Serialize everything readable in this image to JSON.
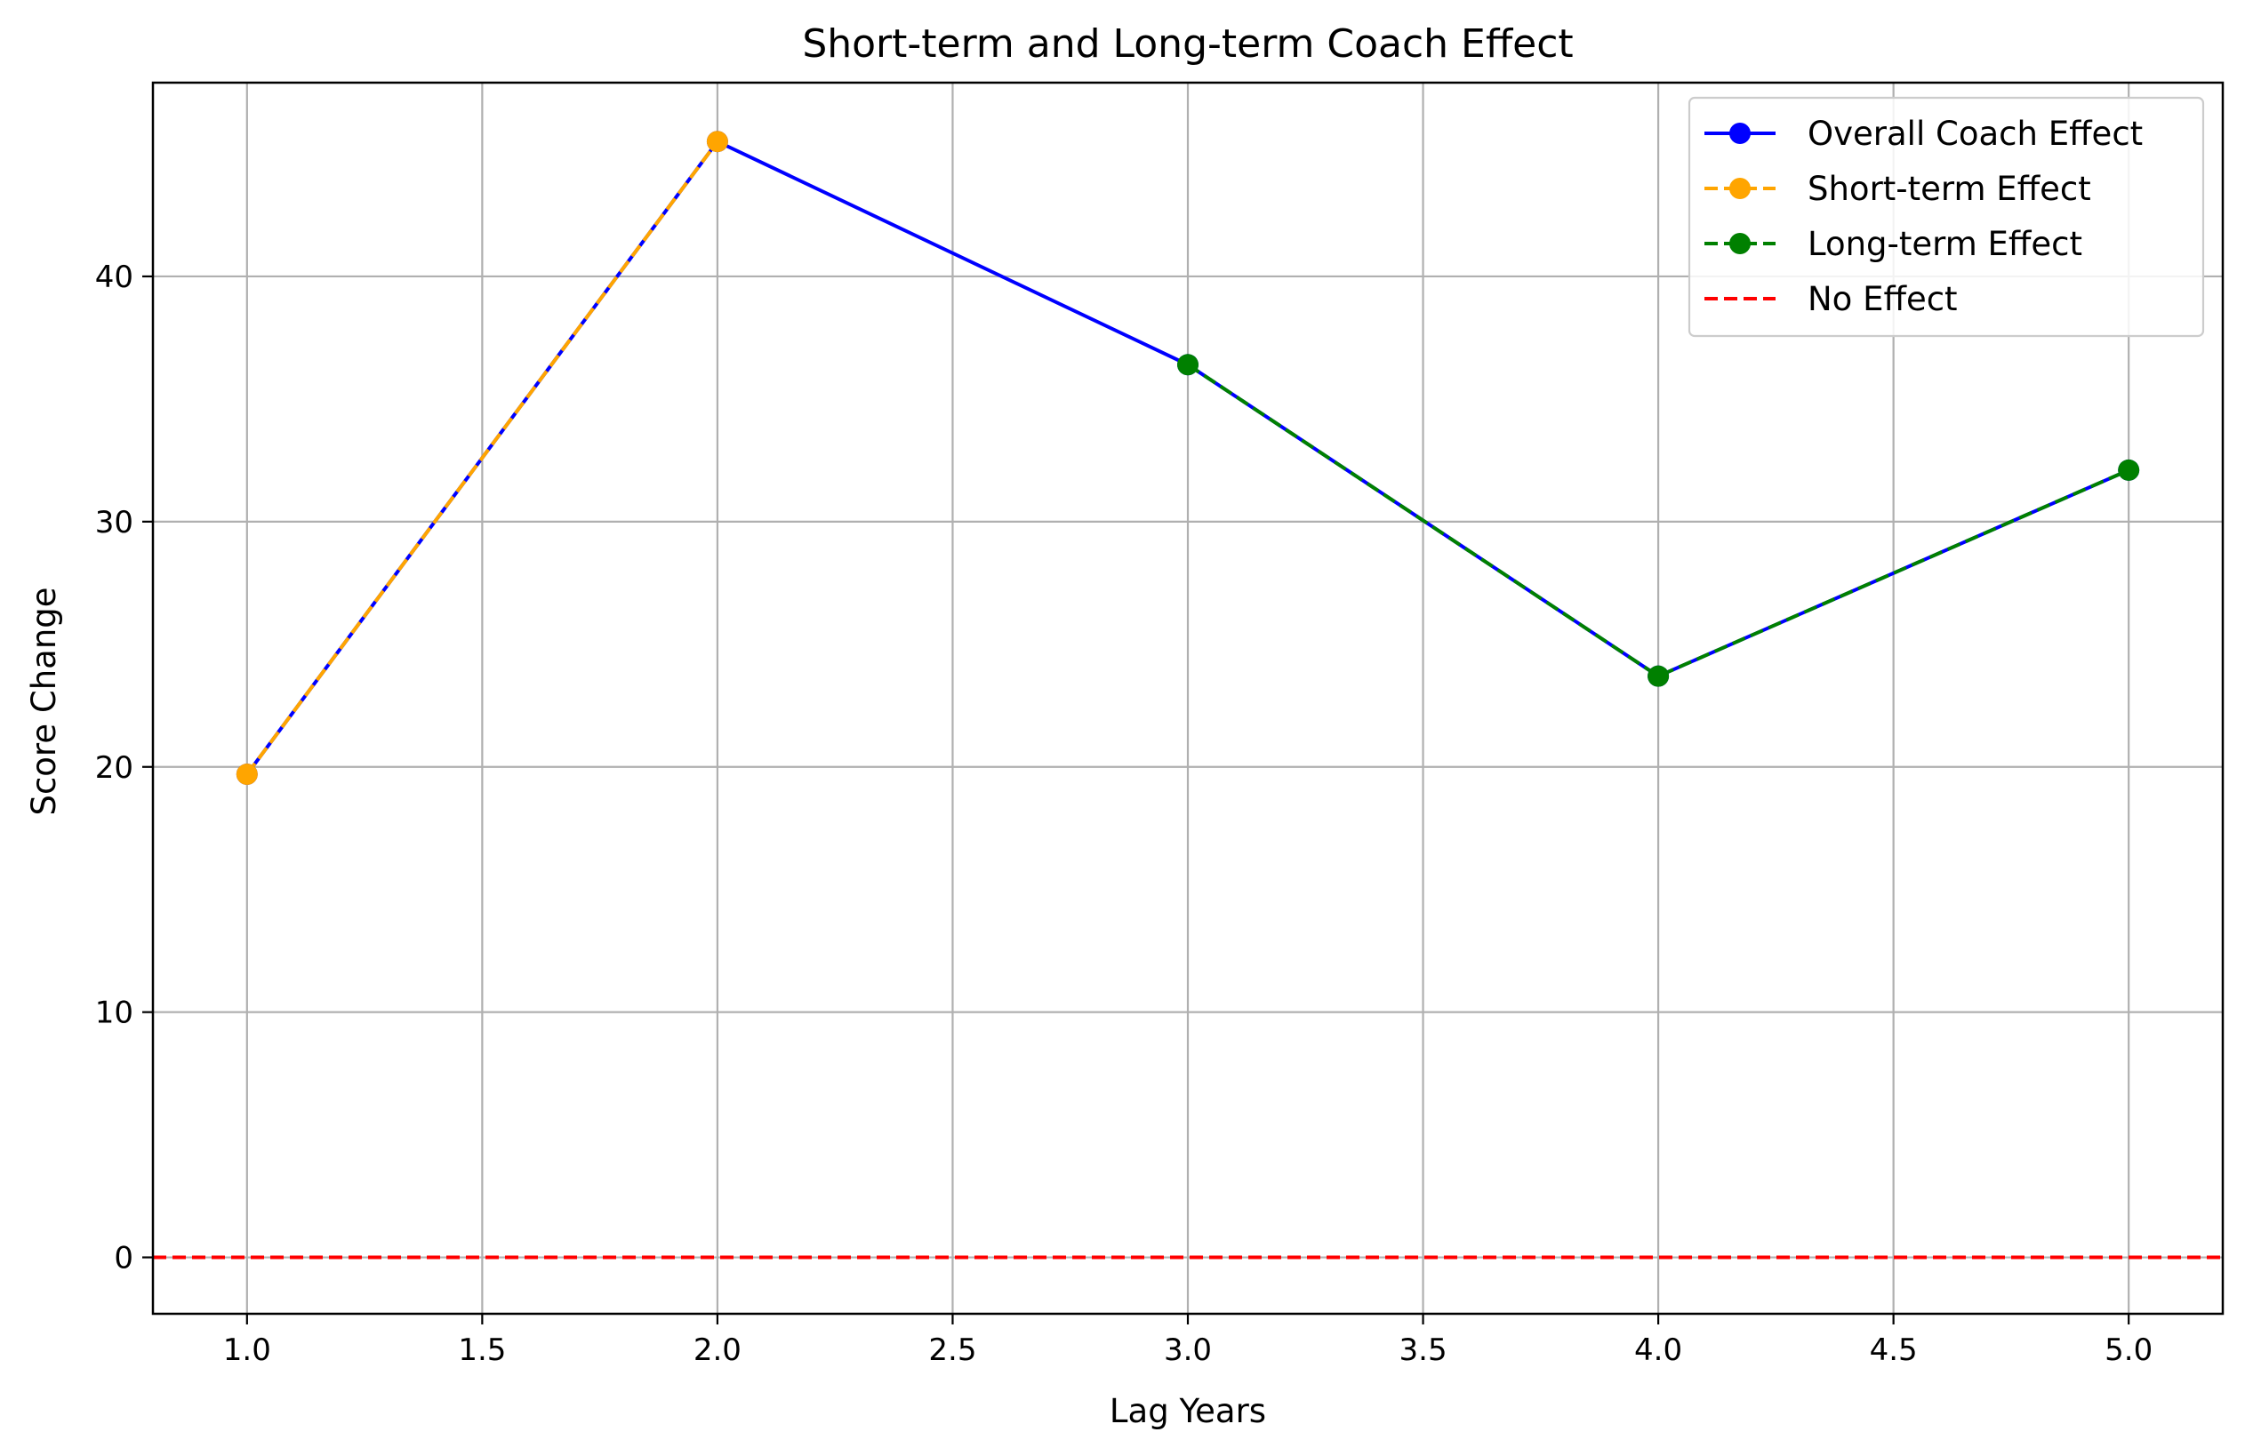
{
  "chart_data": {
    "type": "line",
    "title": "Short-term and Long-term Coach Effect",
    "xlabel": "Lag Years",
    "ylabel": "Score Change",
    "xlim": [
      0.8,
      5.2
    ],
    "ylim": [
      -2.3,
      47.9
    ],
    "xticks": [
      1.0,
      1.5,
      2.0,
      2.5,
      3.0,
      3.5,
      4.0,
      4.5,
      5.0
    ],
    "xtick_labels": [
      "1.0",
      "1.5",
      "2.0",
      "2.5",
      "3.0",
      "3.5",
      "4.0",
      "4.5",
      "5.0"
    ],
    "yticks": [
      0,
      10,
      20,
      30,
      40
    ],
    "ytick_labels": [
      "0",
      "10",
      "20",
      "30",
      "40"
    ],
    "grid": true,
    "legend_position": "top-right",
    "series": [
      {
        "name": "Overall Coach Effect",
        "color": "#0000ff",
        "style": "solid",
        "marker": "circle",
        "x": [
          1,
          2,
          3,
          4,
          5
        ],
        "y": [
          19.7,
          45.5,
          36.4,
          23.7,
          32.1
        ]
      },
      {
        "name": "Short-term Effect",
        "color": "#ffa500",
        "style": "dashed",
        "marker": "circle",
        "x": [
          1,
          2
        ],
        "y": [
          19.7,
          45.5
        ]
      },
      {
        "name": "Long-term Effect",
        "color": "#008000",
        "style": "dashed",
        "marker": "circle",
        "x": [
          3,
          4,
          5
        ],
        "y": [
          36.4,
          23.7,
          32.1
        ]
      }
    ],
    "reference_line": {
      "name": "No Effect",
      "y": 0,
      "color": "#ff0000",
      "style": "dashed"
    }
  }
}
